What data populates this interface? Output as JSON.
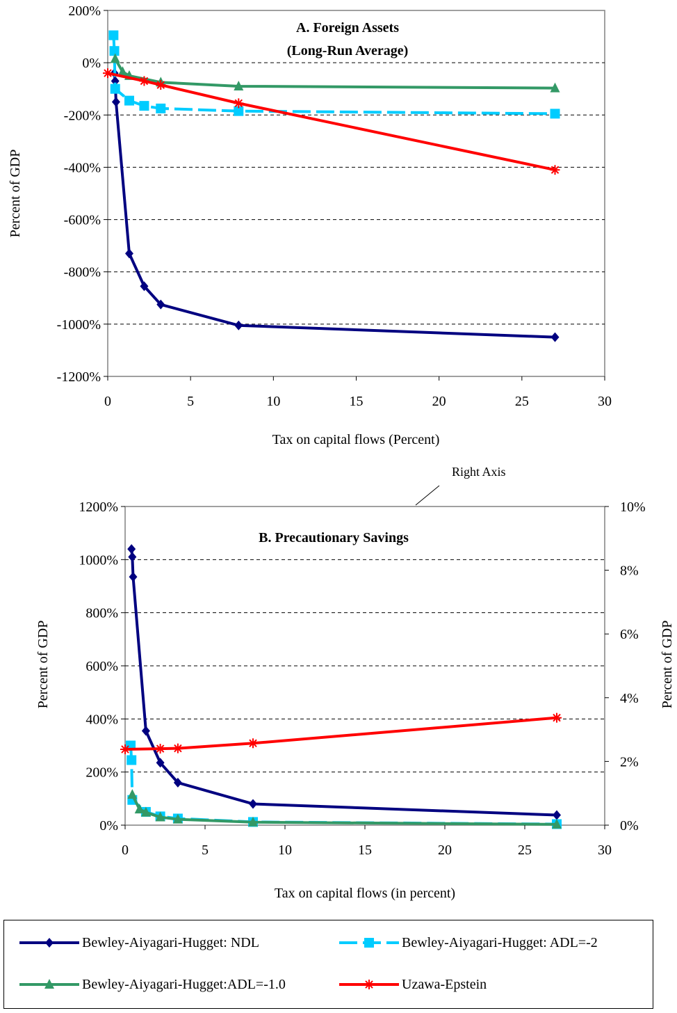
{
  "chart_data": [
    {
      "type": "line",
      "title": "A. Foreign Assets",
      "subtitle": "(Long-Run Average)",
      "xlabel": "Tax on capital flows (Percent)",
      "ylabel": "Percent of GDP",
      "xlim": [
        0,
        30
      ],
      "ylim": [
        -1200,
        200
      ],
      "xticks": [
        "0",
        "5",
        "10",
        "15",
        "20",
        "25",
        "30"
      ],
      "yticks": [
        "200%",
        "0%",
        "-200%",
        "-400%",
        "-600%",
        "-800%",
        "-1000%",
        "-1200%"
      ],
      "grid": true,
      "series": [
        {
          "name": "Bewley-Aiyagari-Hugget: NDL",
          "x": [
            0.4,
            0.45,
            0.5,
            1.3,
            2.2,
            3.2,
            7.9,
            27
          ],
          "y": [
            -40,
            -70,
            -150,
            -730,
            -855,
            -925,
            -1005,
            -1050
          ]
        },
        {
          "name": "Bewley-Aiyagari-Hugget: ADL=-2",
          "x": [
            0.35,
            0.4,
            0.45,
            1.3,
            2.2,
            3.2,
            7.9,
            27
          ],
          "y": [
            105,
            45,
            -100,
            -145,
            -165,
            -175,
            -185,
            -195
          ]
        },
        {
          "name": "Bewley-Aiyagari-Hugget:ADL=-1.0",
          "x": [
            0.45,
            0.9,
            1.3,
            3.2,
            7.9,
            27
          ],
          "y": [
            15,
            -35,
            -50,
            -75,
            -90,
            -97
          ]
        },
        {
          "name": "Uzawa-Epstein",
          "x": [
            0,
            2.2,
            3.2,
            7.9,
            27
          ],
          "y": [
            -40,
            -70,
            -85,
            -155,
            -410
          ]
        }
      ]
    },
    {
      "type": "line",
      "title": "B. Precautionary Savings",
      "xlabel": "Tax on capital flows (in percent)",
      "ylabel": "Percent of GDP",
      "y2label": "Percent of GDP",
      "xlim": [
        0,
        30
      ],
      "ylim": [
        0,
        1200
      ],
      "y2lim": [
        0,
        10
      ],
      "xticks": [
        "0",
        "5",
        "10",
        "15",
        "20",
        "25",
        "30"
      ],
      "yticks": [
        "1200%",
        "1000%",
        "800%",
        "600%",
        "400%",
        "200%",
        "0%"
      ],
      "y2ticks": [
        "10%",
        "8%",
        "6%",
        "4%",
        "2%",
        "0%"
      ],
      "grid": true,
      "annotation": "Right Axis",
      "series": [
        {
          "name": "Bewley-Aiyagari-Hugget: NDL",
          "axis": "left",
          "x": [
            0.4,
            0.45,
            0.5,
            1.3,
            2.2,
            3.3,
            8,
            27
          ],
          "y": [
            1040,
            1010,
            935,
            355,
            235,
            160,
            80,
            38
          ]
        },
        {
          "name": "Bewley-Aiyagari-Hugget: ADL=-2",
          "axis": "left",
          "x": [
            0.35,
            0.4,
            0.45,
            1.3,
            2.2,
            3.3,
            8,
            27
          ],
          "y": [
            300,
            245,
            95,
            50,
            33,
            25,
            12,
            4
          ]
        },
        {
          "name": "Bewley-Aiyagari-Hugget:ADL=-1.0",
          "axis": "left",
          "x": [
            0.45,
            0.9,
            1.3,
            2.2,
            3.3,
            8,
            27
          ],
          "y": [
            115,
            60,
            48,
            30,
            22,
            11,
            3
          ]
        },
        {
          "name": "Uzawa-Epstein",
          "axis": "right",
          "x": [
            0,
            2.2,
            3.3,
            8,
            27
          ],
          "y": [
            2.38,
            2.4,
            2.41,
            2.57,
            3.37
          ]
        }
      ]
    }
  ],
  "legend": [
    {
      "label": "Bewley-Aiyagari-Hugget: NDL",
      "color": "#000080",
      "marker": "diamond",
      "dash": false
    },
    {
      "label": "Bewley-Aiyagari-Hugget: ADL=-2",
      "color": "#00ccff",
      "marker": "square",
      "dash": true
    },
    {
      "label": "Bewley-Aiyagari-Hugget:ADL=-1.0",
      "color": "#339966",
      "marker": "triangle",
      "dash": false
    },
    {
      "label": "Uzawa-Epstein",
      "color": "#ff0000",
      "marker": "star",
      "dash": false
    }
  ]
}
